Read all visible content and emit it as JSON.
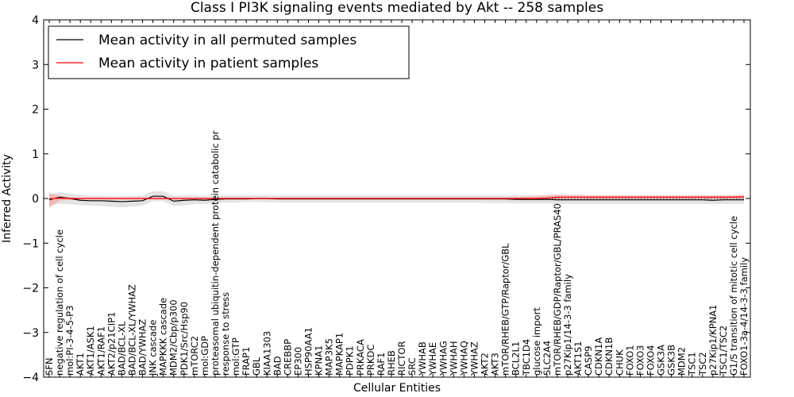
{
  "chart_data": {
    "type": "line",
    "title": "Class I PI3K signaling events mediated by Akt -- 258 samples",
    "xlabel": "Cellular Entities",
    "ylabel": "Inferred Activity",
    "ylim": [
      -4,
      4
    ],
    "yticks": [
      -4,
      -3,
      -2,
      -1,
      0,
      1,
      2,
      3,
      4
    ],
    "ytick_labels": [
      "−4",
      "−3",
      "−2",
      "−1",
      "0",
      "1",
      "2",
      "3",
      "4"
    ],
    "grid": false,
    "legend_position": "top-left",
    "categories": [
      "SFN",
      "negative regulation of cell cycle",
      "mol:PI-3-4-5-P3",
      "AKT1",
      "AKT1/ASK1",
      "AKT1/RAF1",
      "AKT2/p21CIP1",
      "BAD/BCL-XL",
      "BAD/BCL-XL/YWHAZ",
      "BAD/YWHAZ",
      "JNK cascade",
      "MAPKKK cascade",
      "MDM2/Cbp/p300",
      "PDK1/Src/Hsp90",
      "mTORC2",
      "mol:GDP",
      "proteasomal ubiquitin-dependent protein catabolic pr",
      "response to stress",
      "mol:GTP",
      "FRAP1",
      "GBL",
      "KIAA1303",
      "BAD",
      "CREBBP",
      "EP300",
      "HSP90AA1",
      "KPNA1",
      "MAP3K5",
      "MAPKAP1",
      "PDPK1",
      "PRKACA",
      "PRKDC",
      "RAF1",
      "RHEB",
      "RICTOR",
      "SRC",
      "YWHAB",
      "YWHAE",
      "YWHAG",
      "YWHAH",
      "YWHAQ",
      "YWHAZ",
      "AKT2",
      "AKT3",
      "mTOR/RHEB/GTP/Raptor/GBL",
      "BCL2L1",
      "TBC1D4",
      "glucose import",
      "SLC2A4",
      "mTOR/RHEB/GDP/Raptor/GBL/PRAS40",
      "p27Kip1/14-3-3 family",
      "AKT1S1",
      "CASP9",
      "CDKN1A",
      "CDKN1B",
      "CHUK",
      "FOXO1",
      "FOXO3",
      "FOXO4",
      "GSK3A",
      "GSK3B",
      "MDM2",
      "TSC1",
      "TSC2",
      "p27Kip1/KPNA1",
      "TSC1/TSC2",
      "G1/S transition of mitotic cell cycle",
      "FOXO1-3a-4/14-3-3 family"
    ],
    "series": [
      {
        "name": "Mean activity in all permuted samples",
        "color": "#000000",
        "values": [
          -0.03,
          0.03,
          0.0,
          -0.04,
          -0.05,
          -0.05,
          -0.06,
          -0.07,
          -0.06,
          -0.05,
          0.05,
          0.05,
          -0.06,
          -0.04,
          -0.03,
          -0.04,
          -0.02,
          -0.01,
          -0.01,
          -0.01,
          0.0,
          0.0,
          -0.01,
          -0.01,
          -0.01,
          -0.01,
          -0.01,
          -0.01,
          -0.01,
          -0.01,
          -0.01,
          -0.01,
          -0.01,
          -0.01,
          -0.01,
          -0.01,
          -0.01,
          -0.01,
          -0.01,
          -0.01,
          -0.01,
          -0.01,
          -0.01,
          -0.01,
          -0.01,
          -0.02,
          -0.02,
          -0.02,
          -0.02,
          -0.03,
          -0.03,
          -0.03,
          -0.03,
          -0.03,
          -0.03,
          -0.03,
          -0.03,
          -0.03,
          -0.03,
          -0.03,
          -0.03,
          -0.03,
          -0.03,
          -0.03,
          -0.04,
          -0.03,
          -0.03,
          -0.03
        ],
        "band_low": [
          -0.15,
          -0.12,
          -0.13,
          -0.15,
          -0.16,
          -0.17,
          -0.18,
          -0.2,
          -0.18,
          -0.16,
          -0.06,
          -0.06,
          -0.17,
          -0.15,
          -0.13,
          -0.13,
          -0.1,
          -0.09,
          -0.09,
          -0.08,
          -0.08,
          -0.08,
          -0.09,
          -0.09,
          -0.09,
          -0.09,
          -0.09,
          -0.09,
          -0.09,
          -0.09,
          -0.09,
          -0.09,
          -0.09,
          -0.09,
          -0.09,
          -0.09,
          -0.09,
          -0.09,
          -0.09,
          -0.09,
          -0.09,
          -0.09,
          -0.1,
          -0.1,
          -0.1,
          -0.11,
          -0.11,
          -0.11,
          -0.11,
          -0.12,
          -0.12,
          -0.12,
          -0.12,
          -0.12,
          -0.12,
          -0.12,
          -0.12,
          -0.12,
          -0.12,
          -0.12,
          -0.12,
          -0.12,
          -0.12,
          -0.12,
          -0.13,
          -0.12,
          -0.12,
          -0.12
        ],
        "band_high": [
          0.1,
          0.14,
          0.11,
          0.08,
          0.06,
          0.06,
          0.05,
          0.05,
          0.06,
          0.07,
          0.16,
          0.16,
          0.06,
          0.07,
          0.07,
          0.06,
          0.07,
          0.07,
          0.07,
          0.07,
          0.07,
          0.07,
          0.07,
          0.07,
          0.07,
          0.07,
          0.07,
          0.07,
          0.07,
          0.07,
          0.07,
          0.07,
          0.07,
          0.07,
          0.07,
          0.07,
          0.07,
          0.07,
          0.07,
          0.07,
          0.07,
          0.07,
          0.07,
          0.07,
          0.07,
          0.07,
          0.07,
          0.07,
          0.07,
          0.06,
          0.06,
          0.06,
          0.06,
          0.06,
          0.06,
          0.06,
          0.06,
          0.06,
          0.06,
          0.06,
          0.06,
          0.06,
          0.06,
          0.06,
          0.05,
          0.06,
          0.06,
          0.06
        ]
      },
      {
        "name": "Mean activity in patient samples",
        "color": "#ff0000",
        "values": [
          -0.01,
          0.01,
          0.0,
          0.0,
          0.0,
          0.0,
          0.0,
          0.0,
          0.0,
          0.0,
          0.0,
          0.0,
          0.0,
          0.0,
          0.0,
          0.0,
          0.0,
          0.0,
          0.0,
          0.0,
          0.0,
          0.0,
          0.0,
          0.0,
          0.0,
          0.0,
          0.0,
          0.0,
          0.0,
          0.0,
          0.0,
          0.0,
          0.0,
          0.0,
          0.0,
          0.0,
          0.0,
          0.0,
          0.0,
          0.0,
          0.0,
          0.0,
          0.0,
          0.0,
          0.0,
          0.0,
          0.0,
          0.0,
          0.01,
          0.03,
          0.03,
          0.03,
          0.03,
          0.03,
          0.03,
          0.03,
          0.03,
          0.03,
          0.03,
          0.03,
          0.03,
          0.03,
          0.03,
          0.03,
          0.03,
          0.03,
          0.03,
          0.04
        ],
        "band_low": [
          -0.2,
          -0.05,
          -0.03,
          -0.02,
          -0.02,
          -0.02,
          -0.02,
          -0.02,
          -0.02,
          -0.02,
          -0.02,
          -0.02,
          -0.02,
          -0.02,
          -0.02,
          -0.02,
          -0.02,
          -0.02,
          -0.02,
          -0.02,
          -0.02,
          -0.02,
          -0.02,
          -0.02,
          -0.02,
          -0.02,
          -0.02,
          -0.02,
          -0.02,
          -0.02,
          -0.02,
          -0.02,
          -0.02,
          -0.02,
          -0.02,
          -0.02,
          -0.02,
          -0.02,
          -0.02,
          -0.02,
          -0.02,
          -0.02,
          -0.02,
          -0.02,
          -0.02,
          -0.02,
          -0.03,
          -0.03,
          -0.03,
          -0.02,
          -0.01,
          -0.01,
          -0.01,
          -0.01,
          -0.01,
          -0.01,
          -0.01,
          -0.01,
          -0.01,
          -0.01,
          -0.01,
          -0.01,
          -0.01,
          -0.01,
          -0.01,
          -0.01,
          -0.01,
          -0.01
        ],
        "band_high": [
          0.12,
          0.06,
          0.03,
          0.02,
          0.02,
          0.02,
          0.02,
          0.02,
          0.02,
          0.02,
          0.02,
          0.02,
          0.02,
          0.02,
          0.02,
          0.02,
          0.02,
          0.02,
          0.02,
          0.02,
          0.02,
          0.02,
          0.02,
          0.02,
          0.02,
          0.02,
          0.02,
          0.02,
          0.02,
          0.02,
          0.02,
          0.02,
          0.02,
          0.02,
          0.02,
          0.02,
          0.02,
          0.02,
          0.02,
          0.02,
          0.02,
          0.02,
          0.02,
          0.02,
          0.02,
          0.03,
          0.04,
          0.05,
          0.07,
          0.09,
          0.08,
          0.08,
          0.07,
          0.07,
          0.07,
          0.07,
          0.07,
          0.07,
          0.07,
          0.07,
          0.07,
          0.07,
          0.07,
          0.07,
          0.07,
          0.07,
          0.07,
          0.08
        ]
      }
    ],
    "band_colors": {
      "permuted": "#cccccc",
      "patient": "#ff9999"
    },
    "reference_line": {
      "value": 0,
      "style": "dotted",
      "color": "#000000"
    }
  }
}
